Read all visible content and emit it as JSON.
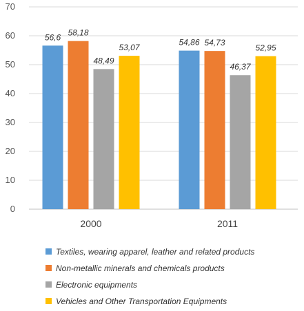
{
  "chart_data": {
    "type": "bar",
    "categories": [
      "2000",
      "2011"
    ],
    "series": [
      {
        "name": "Textiles, wearing apparel, leather and related products",
        "values": [
          56.6,
          54.86
        ],
        "labels": [
          "56,6",
          "54,86"
        ],
        "color": "#5b9bd5"
      },
      {
        "name": "Non-metallic minerals and chemicals products",
        "values": [
          58.18,
          54.73
        ],
        "labels": [
          "58,18",
          "54,73"
        ],
        "color": "#ed7d31"
      },
      {
        "name": "Electronic equipments",
        "values": [
          48.49,
          46.37
        ],
        "labels": [
          "48,49",
          "46,37"
        ],
        "color": "#a5a5a5"
      },
      {
        "name": "Vehicles and Other Transportation Equipments",
        "values": [
          53.07,
          52.95
        ],
        "labels": [
          "53,07",
          "52,95"
        ],
        "color": "#ffc000"
      }
    ],
    "yticks": [
      "0",
      "10",
      "20",
      "30",
      "40",
      "50",
      "60",
      "70"
    ],
    "ylim": [
      0,
      70
    ],
    "grid": true,
    "legend": "bottom"
  }
}
